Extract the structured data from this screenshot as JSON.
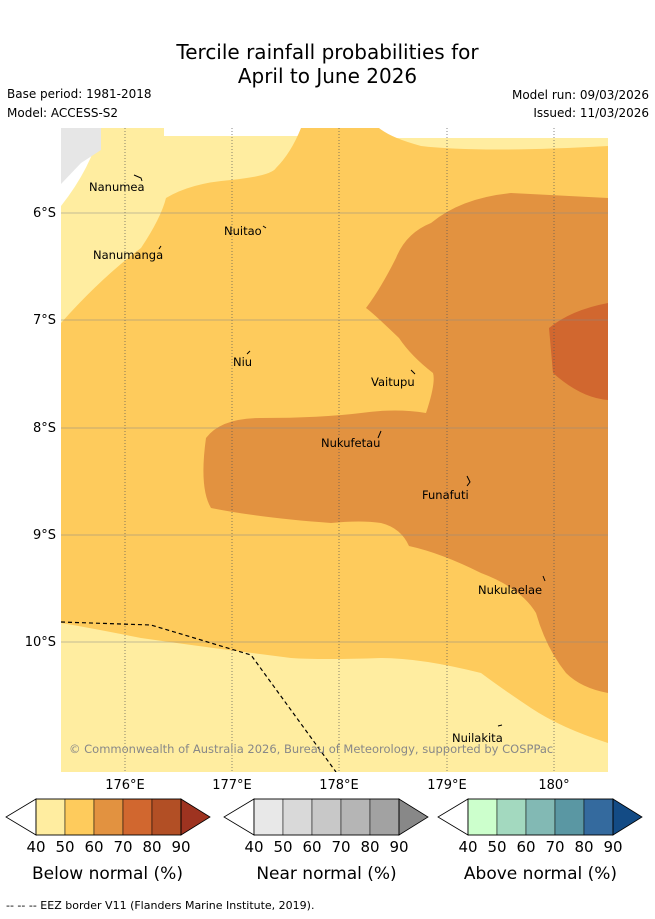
{
  "title_line1": "Tercile rainfall probabilities for",
  "title_line2": "April to June 2026",
  "base_period": "Base period: 1981-2018",
  "model": "Model: ACCESS-S2",
  "model_run": "Model run: 09/03/2026",
  "issued": "Issued: 11/03/2026",
  "lat_labels": [
    "6°S",
    "7°S",
    "8°S",
    "9°S",
    "10°S"
  ],
  "lon_labels": [
    "176°E",
    "177°E",
    "178°E",
    "179°E",
    "180°"
  ],
  "places": [
    "Nanumea",
    "Nuitao",
    "Nanumanga",
    "Niu",
    "Vaitupu",
    "Nukufetau",
    "Funafuti",
    "Nukulaelae",
    "Nuilakita"
  ],
  "copyright": "© Commonwealth of Australia 2026, Bureau of Meteorology, supported by COSPPac",
  "colorbars": [
    {
      "label": "Below normal (%)",
      "colors": [
        "#ffeda0",
        "#fecb5c",
        "#e29240",
        "#d1672f",
        "#b24f25",
        "#9e3320"
      ]
    },
    {
      "label": "Near normal (%)",
      "colors": [
        "#e8e8e8",
        "#d9d9d9",
        "#c8c8c8",
        "#b5b5b5",
        "#a2a2a2",
        "#888888"
      ]
    },
    {
      "label": "Above normal (%)",
      "colors": [
        "#ccffcc",
        "#a3d9bf",
        "#82b9b4",
        "#5a97a3",
        "#346a9e",
        "#134b85"
      ]
    }
  ],
  "ticks": [
    "40",
    "50",
    "60",
    "70",
    "80",
    "90"
  ],
  "footer": "--  --  -- EEZ border V11 (Flanders Marine Institute, 2019)."
}
